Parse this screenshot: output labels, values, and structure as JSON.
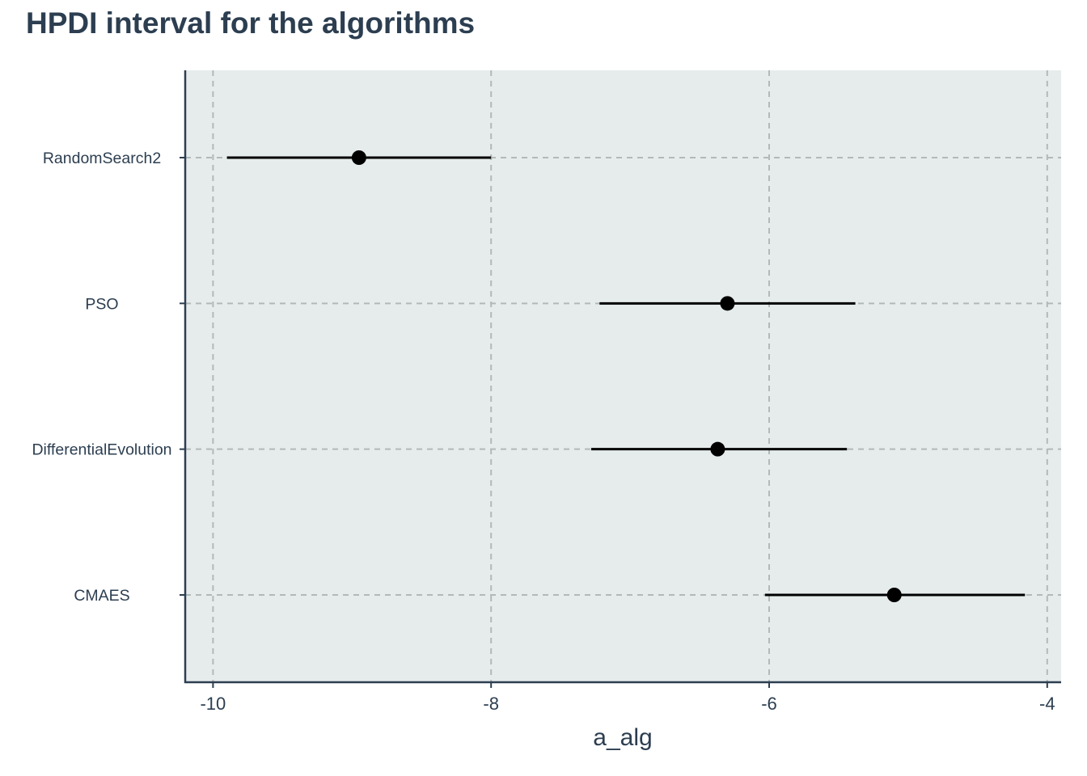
{
  "chart_data": {
    "type": "scatter",
    "title": "HPDI interval for the algorithms",
    "xlabel": "a_alg",
    "ylabel": "",
    "xlim": [
      -10.2,
      -3.9
    ],
    "xticks": [
      -10,
      -8,
      -6,
      -4
    ],
    "xtick_labels": [
      "-10",
      "-8",
      "-6",
      "-4"
    ],
    "categories": [
      "RandomSearch2",
      "PSO",
      "DifferentialEvolution",
      "CMAES"
    ],
    "points": [
      {
        "category": "RandomSearch2",
        "estimate": -8.95,
        "lower": -9.9,
        "upper": -8.0
      },
      {
        "category": "PSO",
        "estimate": -6.3,
        "lower": -7.22,
        "upper": -5.38
      },
      {
        "category": "DifferentialEvolution",
        "estimate": -6.37,
        "lower": -7.28,
        "upper": -5.44
      },
      {
        "category": "CMAES",
        "estimate": -5.1,
        "lower": -6.03,
        "upper": -4.16
      }
    ],
    "grid": true,
    "panel_background": "#e6ecec",
    "grid_color": "#b3b8b8",
    "axis_color": "#2c3e50",
    "point_color": "#000000"
  }
}
